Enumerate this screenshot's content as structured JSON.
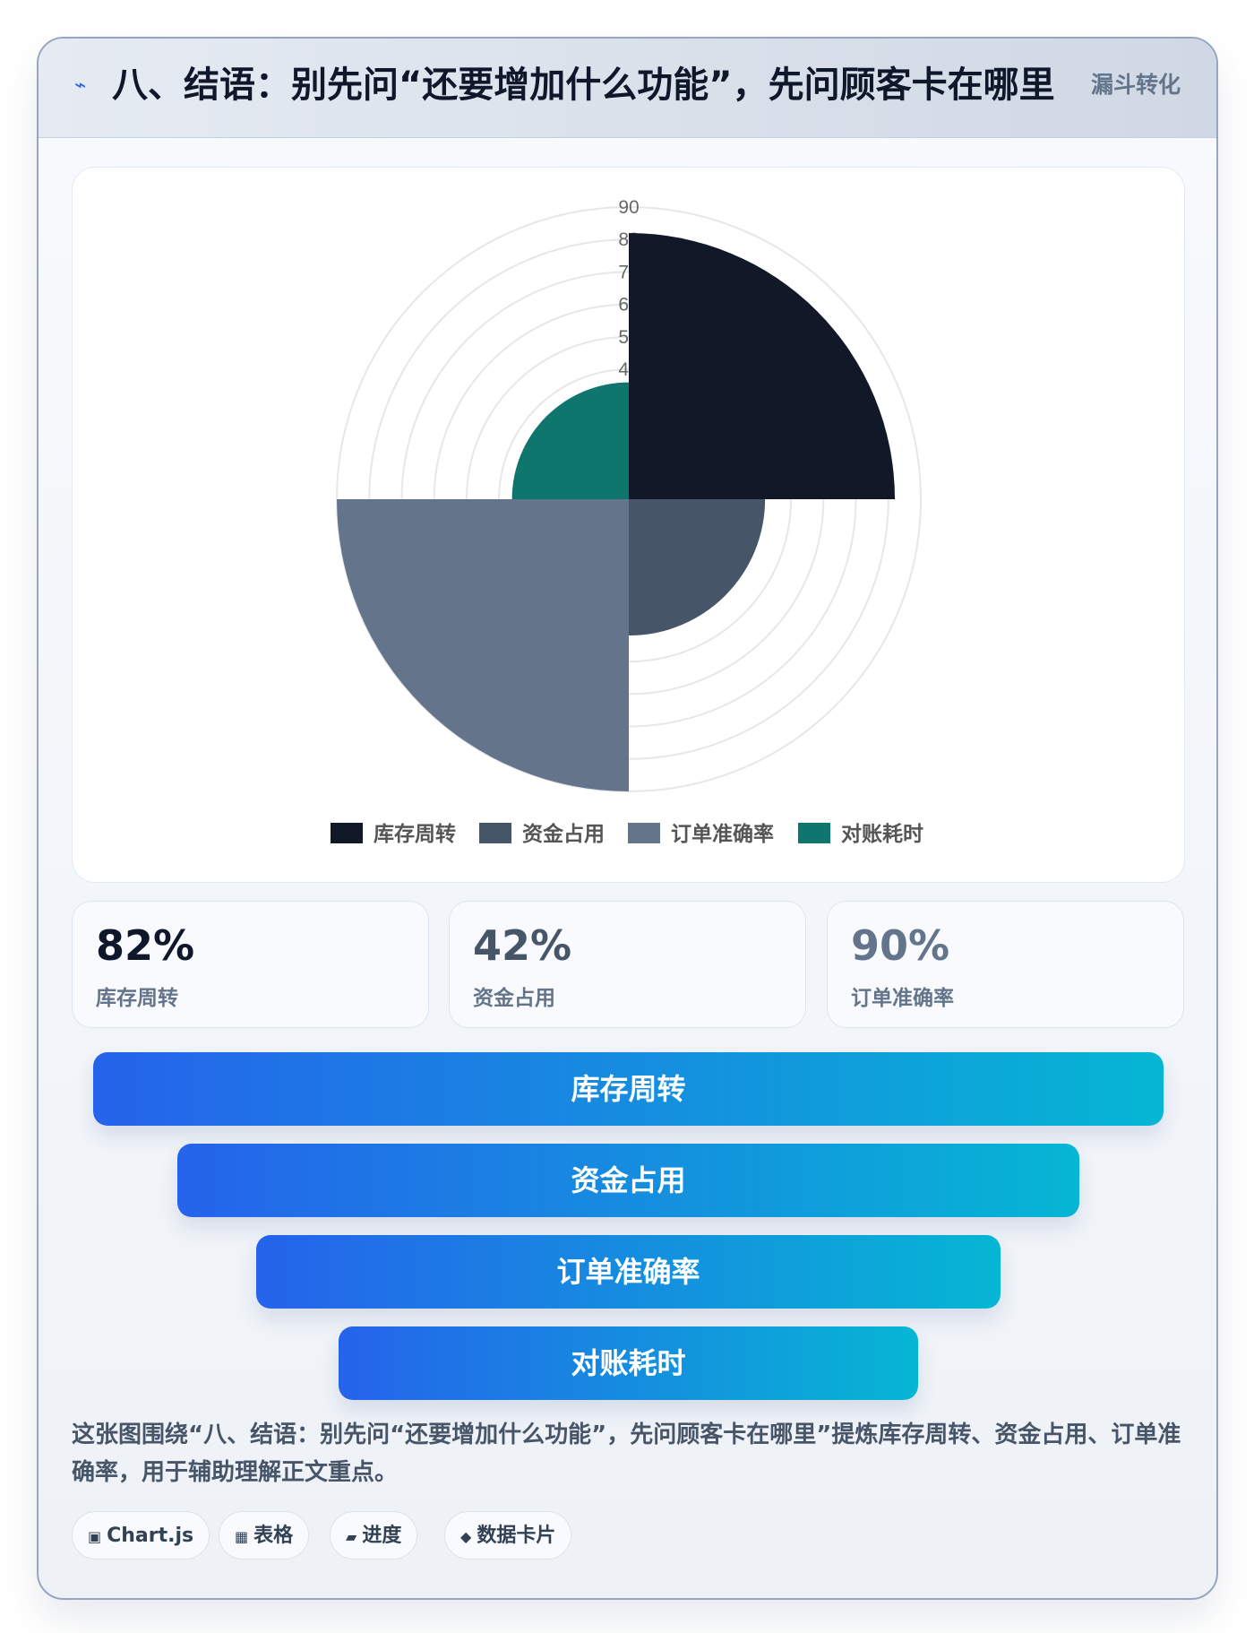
{
  "header": {
    "icon": "lightning-icon",
    "title": "八、结语：别先问“还要增加什么功能”，先问顾客卡在哪里",
    "badge": "漏斗转化"
  },
  "chart_data": {
    "type": "polarArea",
    "categories": [
      "库存周转",
      "资金占用",
      "订单准确率",
      "对账耗时"
    ],
    "values": [
      82,
      42,
      90,
      36
    ],
    "colors": [
      "#111827",
      "#475569",
      "#64748b",
      "#0f766e"
    ],
    "r_ticks": [
      40,
      50,
      60,
      70,
      80,
      90
    ],
    "r_max": 90,
    "grid": true,
    "legend": "bottom"
  },
  "stats": [
    {
      "value": "82%",
      "label": "库存周转",
      "color": "#0f172a"
    },
    {
      "value": "42%",
      "label": "资金占用",
      "color": "#475569"
    },
    {
      "value": "90%",
      "label": "订单准确率",
      "color": "#64748b"
    }
  ],
  "funnel": [
    "库存周转",
    "资金占用",
    "订单准确率",
    "对账耗时"
  ],
  "description": "这张图围绕“八、结语：别先问“还要增加什么功能”，先问顾客卡在哪里”提炼库存周转、资金占用、订单准确率，用于辅助理解正文重点。",
  "tags": [
    {
      "icon": "chip-icon",
      "glyph": "▣",
      "label": "Chart.js"
    },
    {
      "icon": "table-icon",
      "glyph": "▦",
      "label": "表格"
    },
    {
      "icon": "progress-icon",
      "glyph": "▰",
      "label": "进度"
    },
    {
      "icon": "diamond-icon",
      "glyph": "◆",
      "label": "数据卡片"
    }
  ]
}
